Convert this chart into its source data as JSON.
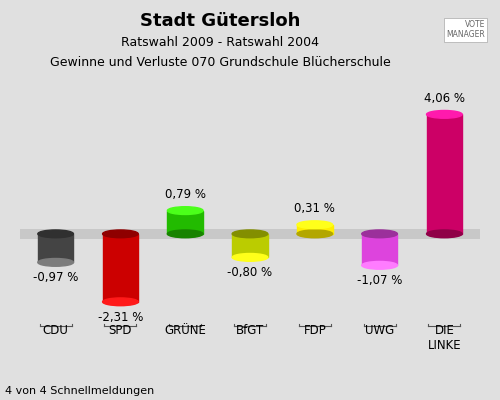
{
  "title": "Stadt Gütersloh",
  "subtitle1": "Ratswahl 2009 - Ratswahl 2004",
  "subtitle2": "Gewinne und Verluste 070 Grundschule Blücherschule",
  "footer": "4 von 4 Schnellmeldungen",
  "categories": [
    "CDU",
    "SPD",
    "GRÜNE",
    "BfGT",
    "FDP",
    "UWG",
    "DIE\nLINKE"
  ],
  "values": [
    -0.97,
    -2.31,
    0.79,
    -0.8,
    0.31,
    -1.07,
    4.06
  ],
  "value_labels": [
    "-0,97 %",
    "-2,31 %",
    "0,79 %",
    "-0,80 %",
    "0,31 %",
    "-1,07 %",
    "4,06 %"
  ],
  "bar_colors": [
    "#444444",
    "#CC0000",
    "#22BB00",
    "#BBCC00",
    "#FFEE00",
    "#DD44DD",
    "#CC0066"
  ],
  "background_color": "#E0E0E0",
  "ylim": [
    -3.2,
    5.5
  ],
  "bar_width": 0.55,
  "title_fontsize": 13,
  "subtitle_fontsize": 9,
  "label_fontsize": 8.5,
  "cat_fontsize": 8.5,
  "footer_fontsize": 8,
  "zero_band_half": 0.18
}
